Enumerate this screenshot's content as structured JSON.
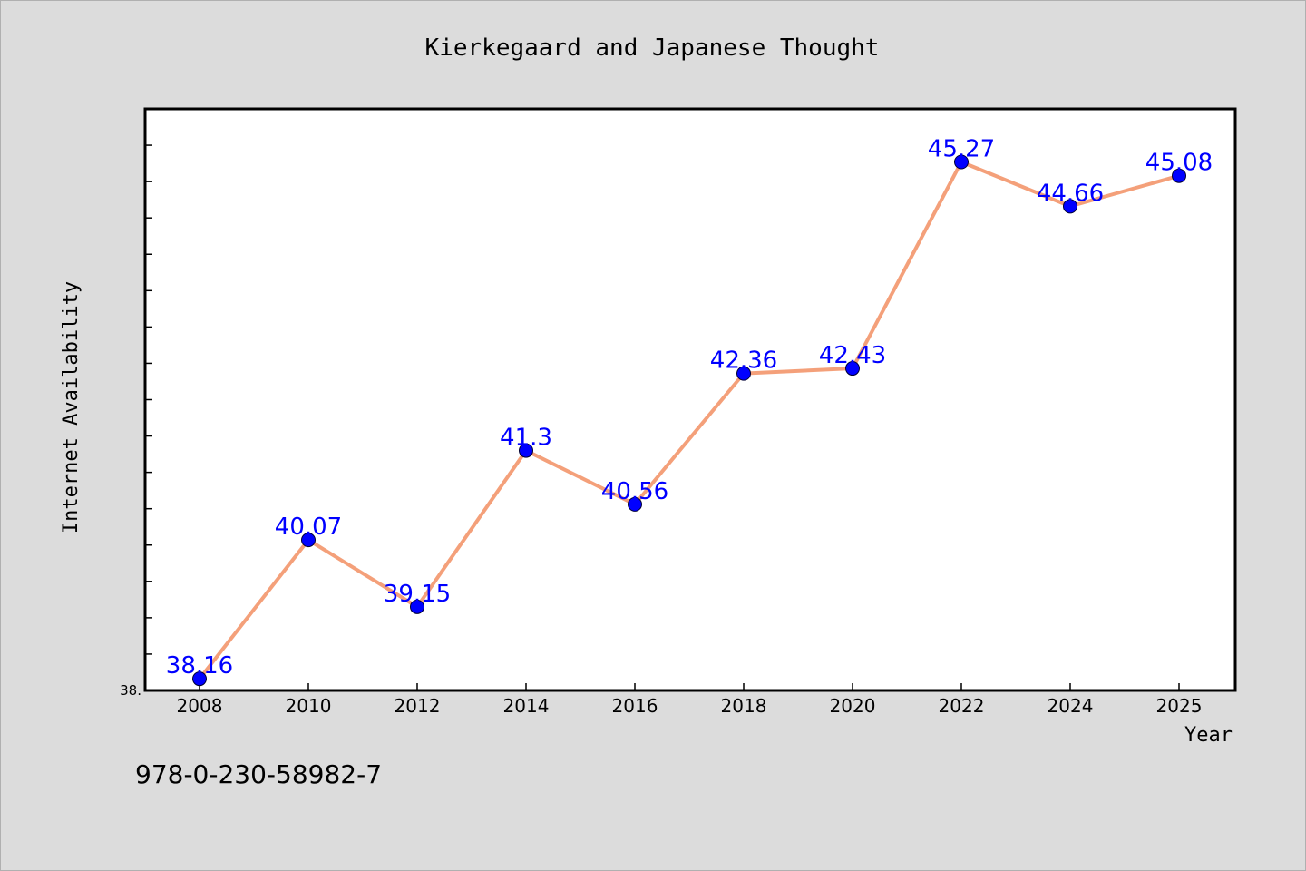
{
  "chart_data": {
    "type": "line",
    "title": "Kierkegaard and Japanese Thought",
    "xlabel": "Year",
    "ylabel": "Internet Availability",
    "categories": [
      "2008",
      "2010",
      "2012",
      "2014",
      "2016",
      "2018",
      "2020",
      "2022",
      "2024",
      "2025"
    ],
    "series": [
      {
        "values": [
          38.16,
          40.07,
          39.15,
          41.3,
          40.56,
          42.36,
          42.43,
          45.27,
          44.66,
          45.08
        ],
        "data_labels": [
          "38.16",
          "40.07",
          "39.15",
          "41.3",
          "40.56",
          "42.36",
          "42.43",
          "45.27",
          "44.66",
          "45.08"
        ]
      }
    ],
    "ylim": [
      38.0,
      46.0
    ],
    "ytick_labels": [
      "38."
    ],
    "grid": false,
    "legend": "none",
    "line_color": "#f4a07a",
    "marker_color": "#0000ff",
    "label_color": "#0000ff"
  },
  "footer": {
    "isbn": "978-0-230-58982-7"
  }
}
